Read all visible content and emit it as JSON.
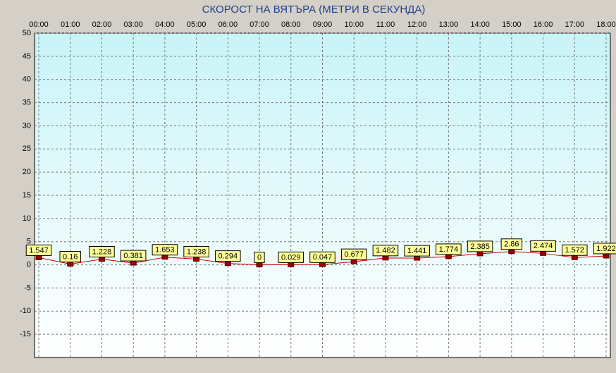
{
  "chart_data": {
    "type": "line",
    "title": "СКОРОСТ НА ВЯТЪРА (МЕТРИ В СЕКУНДА)",
    "categories": [
      "00:00",
      "01:00",
      "02:00",
      "03:00",
      "04:00",
      "05:00",
      "06:00",
      "07:00",
      "08:00",
      "09:00",
      "10:00",
      "11:00",
      "12:00",
      "13:00",
      "14:00",
      "15:00",
      "16:00",
      "17:00",
      "18:00"
    ],
    "values": [
      1.547,
      0.16,
      1.228,
      0.381,
      1.653,
      1.238,
      0.294,
      0,
      0.029,
      0.047,
      0.677,
      1.482,
      1.441,
      1.774,
      2.385,
      2.86,
      2.474,
      1.572,
      1.922
    ],
    "color": "#cc0000",
    "ylim": [
      -20,
      50
    ],
    "yticks": [
      -15,
      -10,
      -5,
      0,
      5,
      10,
      15,
      20,
      25,
      30,
      35,
      40,
      45,
      50
    ],
    "grid": true
  }
}
